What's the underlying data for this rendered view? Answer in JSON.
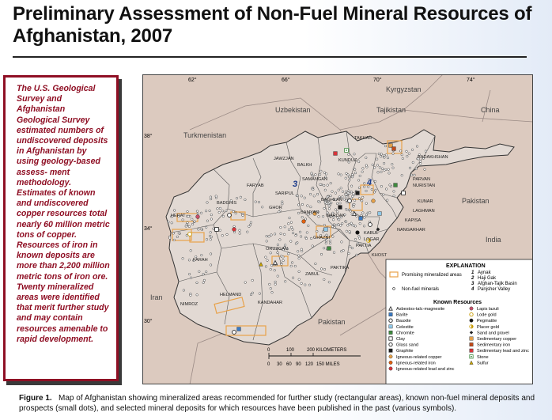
{
  "title": "Preliminary Assessment of Non-Fuel Mineral Resources of Afghanistan, 2007",
  "sidebar": {
    "text": "The U.S. Geological Survey and Afghanistan Geological Survey estimated numbers of undiscovered deposits in Afghanistan by using geology-based assess- ment methodology. Estimates of known and undiscovered copper resources total nearly 60 million metric tons of copper. Resources of iron in known deposits are more than 2,200 million metric tons of iron ore. Twenty mineralized areas were identified that merit further study and may contain resources amenable to rapid development."
  },
  "map": {
    "longitude_labels": [
      "62°",
      "66°",
      "70°",
      "74°"
    ],
    "latitude_labels": [
      "38°",
      "34°",
      "30°"
    ],
    "countries": [
      {
        "id": "kyrgyzstan",
        "name": "Kyrgyzstan"
      },
      {
        "id": "uzbekistan",
        "name": "Uzbekistan"
      },
      {
        "id": "tajikistan",
        "name": "Tajikistan"
      },
      {
        "id": "china",
        "name": "China"
      },
      {
        "id": "turkmenistan",
        "name": "Turkmenistan"
      },
      {
        "id": "pakistan-east",
        "name": "Pakistan"
      },
      {
        "id": "pakistan-south",
        "name": "Pakistan"
      },
      {
        "id": "india",
        "name": "India"
      },
      {
        "id": "iran",
        "name": "Iran"
      }
    ],
    "provinces": [
      {
        "id": "jawzjan",
        "name": "JAWZJAN"
      },
      {
        "id": "balkh",
        "name": "BALKH"
      },
      {
        "id": "kunduz",
        "name": "KUNDUZ"
      },
      {
        "id": "takhar",
        "name": "TAKHAR"
      },
      {
        "id": "badakhshan",
        "name": "BADAKHSHAN"
      },
      {
        "id": "faryab",
        "name": "FARYAB"
      },
      {
        "id": "samangan",
        "name": "SAMANGAN"
      },
      {
        "id": "baghlan",
        "name": "BAGHLAN"
      },
      {
        "id": "sar-i-pul",
        "name": "SARIPUL"
      },
      {
        "id": "parvan",
        "name": "PARVAN"
      },
      {
        "id": "nuristan",
        "name": "NURISTAN"
      },
      {
        "id": "badghis",
        "name": "BADGHIS"
      },
      {
        "id": "ghor",
        "name": "GHOR"
      },
      {
        "id": "bamyan",
        "name": "BAMYAN"
      },
      {
        "id": "wardak",
        "name": "WARDAK"
      },
      {
        "id": "kunar",
        "name": "KUNAR"
      },
      {
        "id": "laghman",
        "name": "LAGHMAN"
      },
      {
        "id": "kapisa",
        "name": "KAPISA"
      },
      {
        "id": "herat",
        "name": "HERAT"
      },
      {
        "id": "nangarhar",
        "name": "NANGARHAR"
      },
      {
        "id": "ghazni",
        "name": "GHAZNI"
      },
      {
        "id": "kabul",
        "name": "KABUL"
      },
      {
        "id": "logar",
        "name": "LOGAR"
      },
      {
        "id": "paktia",
        "name": "PAKTIA"
      },
      {
        "id": "khost",
        "name": "KHOST"
      },
      {
        "id": "farah",
        "name": "FARAH"
      },
      {
        "id": "oruzgan",
        "name": "ORUZGAN"
      },
      {
        "id": "zabul",
        "name": "ZABUL"
      },
      {
        "id": "paktika",
        "name": "PAKTIKA"
      },
      {
        "id": "nimroz",
        "name": "NIMROZ"
      },
      {
        "id": "helmand",
        "name": "HELMAND"
      },
      {
        "id": "kandahar",
        "name": "KANDAHAR"
      }
    ],
    "area_numbers": [
      "3",
      "4"
    ],
    "scale": {
      "km_ticks": [
        "0",
        "100",
        "200 KILOMETERS"
      ],
      "mile_ticks": [
        "0",
        "30",
        "60",
        "90",
        "120",
        "150 MILES"
      ]
    },
    "explanation": {
      "title": "EXPLANATION",
      "promising": "Promising mineralized areas",
      "non_fuel": "Non-fuel minerals",
      "numbered_areas": [
        {
          "num": "1",
          "name": "Aynak"
        },
        {
          "num": "2",
          "name": "Haji Gak"
        },
        {
          "num": "3",
          "name": "Afghan-Tajik Basin"
        },
        {
          "num": "4",
          "name": "Panjsher Valley"
        }
      ],
      "known_title": "Known Resources",
      "known_left": [
        {
          "label": "Asbestos-talc-magnesite",
          "symbol": "tri-open",
          "color": "#222222"
        },
        {
          "label": "Barite",
          "symbol": "square",
          "color": "#3a79c2"
        },
        {
          "label": "Bauxite",
          "symbol": "circle-open",
          "color": "#222222"
        },
        {
          "label": "Celestite",
          "symbol": "square",
          "color": "#8fc7e6"
        },
        {
          "label": "Chromite",
          "symbol": "square",
          "color": "#3e8a3e"
        },
        {
          "label": "Clay",
          "symbol": "square-open",
          "color": "#222222"
        },
        {
          "label": "Glass sand",
          "symbol": "circle-open",
          "color": "#222222"
        },
        {
          "label": "Graphite",
          "symbol": "square",
          "color": "#1d1d1d"
        },
        {
          "label": "Igneous-related copper",
          "symbol": "circle",
          "color": "#e3a04a"
        },
        {
          "label": "Igneous-related iron",
          "symbol": "circle",
          "color": "#e06010"
        },
        {
          "label": "Igneous-related lead and zinc",
          "symbol": "circle",
          "color": "#d8343a"
        }
      ],
      "known_right": [
        {
          "label": "Lapis lazuli",
          "symbol": "circle",
          "color": "#c8506a"
        },
        {
          "label": "Lode gold",
          "symbol": "circle-open",
          "color": "#c79a00"
        },
        {
          "label": "Pegmatite",
          "symbol": "circle",
          "color": "#111111"
        },
        {
          "label": "Placer gold",
          "symbol": "circle-half",
          "color": "#c79a00"
        },
        {
          "label": "Sand and gravel",
          "symbol": "diamond",
          "color": "#222222"
        },
        {
          "label": "Sedimentary copper",
          "symbol": "square",
          "color": "#e3a04a"
        },
        {
          "label": "Sedimentary iron",
          "symbol": "square",
          "color": "#c04a1a"
        },
        {
          "label": "Sedimentary lead and zinc",
          "symbol": "square",
          "color": "#d8343a"
        },
        {
          "label": "Stone",
          "symbol": "square-dot",
          "color": "#3e8a3e"
        },
        {
          "label": "Sulfur",
          "symbol": "tri",
          "color": "#c9a400"
        }
      ]
    }
  },
  "caption": {
    "figure_label": "Figure 1.",
    "text": "Map of Afghanistan showing mineralized areas recommended for further study (rectangular areas), known non-fuel mineral deposits and prospects (small dots), and selected mineral deposits for which resources have been published in the past (various symbols)."
  },
  "colors": {
    "border_red": "#8f0f24",
    "land": "#dccabf",
    "afghanistan": "#e2d9d3",
    "promising_area": "#e8a24a"
  }
}
